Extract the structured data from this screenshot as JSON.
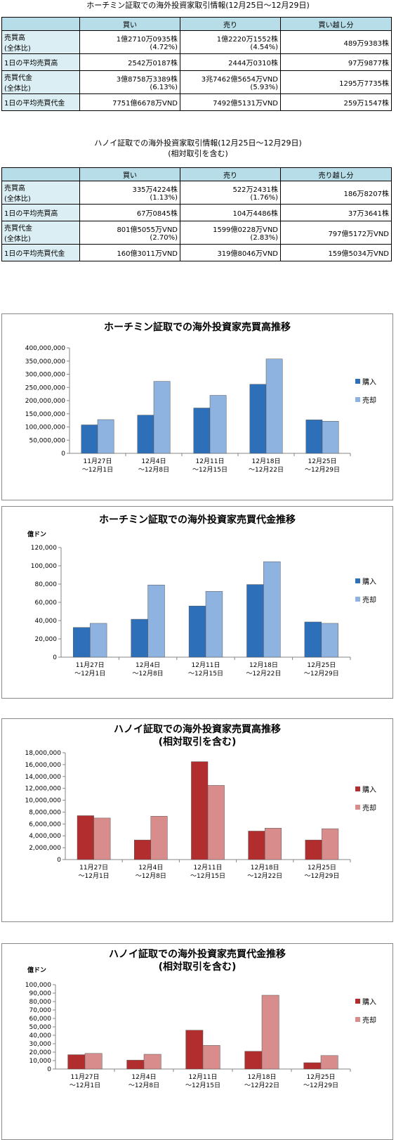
{
  "hcm_table": {
    "title": "ホーチミン証取での海外投資家取引情報(12月25日〜12月29日)",
    "subtitle": "",
    "headers": [
      "",
      "買い",
      "売り",
      "買い越し分"
    ],
    "rows": [
      {
        "label": "売買高",
        "label2": "(全体比)",
        "c1": "1億2710万0935株",
        "c1b": "(4.72%)",
        "c2": "1億2220万1552株",
        "c2b": "(4.54%)",
        "c3": "489万9383株",
        "c3b": ""
      },
      {
        "label": "1日の平均売買高",
        "label2": "",
        "c1": "2542万0187株",
        "c1b": "",
        "c2": "2444万0310株",
        "c2b": "",
        "c3": "97万9877株",
        "c3b": ""
      },
      {
        "label": "売買代金",
        "label2": "(全体比)",
        "c1": "3億8758万3389株",
        "c1b": "(6.13%)",
        "c2": "3兆7462億5654万VND",
        "c2b": "(5.93%)",
        "c3": "1295万7735株",
        "c3b": ""
      },
      {
        "label": "1日の平均売買代金",
        "label2": "",
        "c1": "7751億6678万VND",
        "c1b": "",
        "c2": "7492億5131万VND",
        "c2b": "",
        "c3": "259万1547株",
        "c3b": ""
      }
    ]
  },
  "hn_table": {
    "title": "ハノイ証取での海外投資家取引情報(12月25日〜12月29日)",
    "subtitle": "(相対取引を含む)",
    "headers": [
      "",
      "買い",
      "売り",
      "売り越し分"
    ],
    "rows": [
      {
        "label": "売買高",
        "label2": "(全体比)",
        "c1": "335万4224株",
        "c1b": "(1.13%)",
        "c2": "522万2431株",
        "c2b": "(1.76%)",
        "c3": "186万8207株",
        "c3b": ""
      },
      {
        "label": "1日の平均売買高",
        "label2": "",
        "c1": "67万0845株",
        "c1b": "",
        "c2": "104万4486株",
        "c2b": "",
        "c3": "37万3641株",
        "c3b": ""
      },
      {
        "label": "売買代金",
        "label2": "(全体比)",
        "c1": "801億5055万VND",
        "c1b": "(2.70%)",
        "c2": "1599億0228万VND",
        "c2b": "(2.83%)",
        "c3": "797億5172万VND",
        "c3b": ""
      },
      {
        "label": "1日の平均売買代金",
        "label2": "",
        "c1": "160億3011万VND",
        "c1b": "",
        "c2": "319億8046万VND",
        "c2b": "",
        "c3": "159億5034万VND",
        "c3b": ""
      }
    ]
  },
  "chart_data": [
    {
      "type": "bar",
      "title": "ホーチミン証取での海外投資家売買高推移",
      "title2": "",
      "unit": "",
      "categories": [
        [
          "11月27日",
          "〜12月1日"
        ],
        [
          "12月4日",
          "〜12月8日"
        ],
        [
          "12月11日",
          "〜12月15日"
        ],
        [
          "12月18日",
          "〜12月22日"
        ],
        [
          "12月25日",
          "〜12月29日"
        ]
      ],
      "series": [
        {
          "name": "購入",
          "values": [
            108000000,
            145000000,
            172000000,
            262000000,
            127000000
          ]
        },
        {
          "name": "売却",
          "values": [
            128000000,
            273000000,
            220000000,
            358000000,
            122000000
          ]
        }
      ],
      "ylim": [
        0,
        400000000
      ],
      "yticks": [
        0,
        50000000,
        100000000,
        150000000,
        200000000,
        250000000,
        300000000,
        350000000,
        400000000
      ],
      "legend": "right",
      "colors": [
        "#2e6fba",
        "#8eb3e0"
      ]
    },
    {
      "type": "bar",
      "title": "ホーチミン証取での海外投資家売買代金推移",
      "title2": "",
      "unit": "億ドン",
      "categories": [
        [
          "11月27日",
          "〜12月1日"
        ],
        [
          "12月4日",
          "〜12月8日"
        ],
        [
          "12月11日",
          "〜12月15日"
        ],
        [
          "12月18日",
          "〜12月22日"
        ],
        [
          "12月25日",
          "〜12月29日"
        ]
      ],
      "series": [
        {
          "name": "購入",
          "values": [
            32500,
            41500,
            56000,
            79500,
            38500
          ]
        },
        {
          "name": "売却",
          "values": [
            37000,
            79000,
            72000,
            104500,
            37000
          ]
        }
      ],
      "ylim": [
        0,
        120000
      ],
      "yticks": [
        0,
        20000,
        40000,
        60000,
        80000,
        100000,
        120000
      ],
      "legend": "right",
      "colors": [
        "#2e6fba",
        "#8eb3e0"
      ]
    },
    {
      "type": "bar",
      "title": "ハノイ証取での海外投資家売買高推移",
      "title2": "(相対取引を含む)",
      "unit": "",
      "categories": [
        [
          "11月27日",
          "〜12月1日"
        ],
        [
          "12月4日",
          "〜12月8日"
        ],
        [
          "12月11日",
          "〜12月15日"
        ],
        [
          "12月18日",
          "〜12月22日"
        ],
        [
          "12月25日",
          "〜12月29日"
        ]
      ],
      "series": [
        {
          "name": "購入",
          "values": [
            7400000,
            3300000,
            16500000,
            4800000,
            3300000
          ]
        },
        {
          "name": "売却",
          "values": [
            7000000,
            7300000,
            12500000,
            5300000,
            5200000
          ]
        }
      ],
      "ylim": [
        0,
        18000000
      ],
      "yticks": [
        0,
        2000000,
        4000000,
        6000000,
        8000000,
        10000000,
        12000000,
        14000000,
        16000000,
        18000000
      ],
      "legend": "right",
      "colors": [
        "#b22d2d",
        "#d98c8c"
      ]
    },
    {
      "type": "bar",
      "title": "ハノイ証取での海外投資家売買代金推移",
      "title2": "(相対取引を含む)",
      "unit": "億ドン",
      "categories": [
        [
          "11月27日",
          "〜12月1日"
        ],
        [
          "12月4日",
          "〜12月8日"
        ],
        [
          "12月11日",
          "〜12月15日"
        ],
        [
          "12月18日",
          "〜12月22日"
        ],
        [
          "12月25日",
          "〜12月29日"
        ]
      ],
      "series": [
        {
          "name": "購入",
          "values": [
            17000,
            10500,
            46000,
            21000,
            7500
          ]
        },
        {
          "name": "売却",
          "values": [
            18500,
            17500,
            28000,
            87500,
            16000
          ]
        }
      ],
      "ylim": [
        0,
        100000
      ],
      "yticks": [
        0,
        10000,
        20000,
        30000,
        40000,
        50000,
        60000,
        70000,
        80000,
        90000,
        100000
      ],
      "legend": "right",
      "colors": [
        "#b22d2d",
        "#d98c8c"
      ]
    }
  ]
}
